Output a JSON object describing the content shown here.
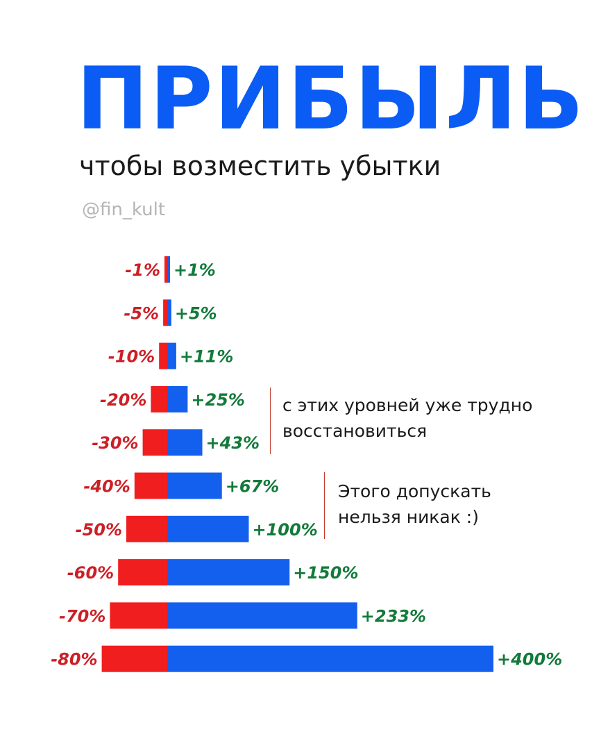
{
  "header": {
    "title": "ПРИБЫЛЬ",
    "subtitle": "чтобы возместить убытки",
    "handle": "@fin_kult"
  },
  "annotations": [
    {
      "line1": "с этих уровней уже трудно",
      "line2": "восстановиться"
    },
    {
      "line1": "Этого допускать",
      "line2": "нельзя никак :)"
    }
  ],
  "colors": {
    "title": "#0a5cf5",
    "loss_bar": "#f01e1e",
    "gain_bar": "#1460ee",
    "loss_label": "#cc1f26",
    "gain_label": "#127a3a"
  },
  "chart_data": {
    "type": "bar",
    "orientation": "horizontal-diverging",
    "categories": [
      "-1%",
      "-5%",
      "-10%",
      "-20%",
      "-30%",
      "-40%",
      "-50%",
      "-60%",
      "-70%",
      "-80%"
    ],
    "series": [
      {
        "values": [
          -1,
          -5,
          -10,
          -20,
          -30,
          -40,
          -50,
          -60,
          -70,
          -80
        ],
        "labels": [
          "-1%",
          "-5%",
          "-10%",
          "-20%",
          "-30%",
          "-40%",
          "-50%",
          "-60%",
          "-70%",
          "-80%"
        ]
      },
      {
        "values": [
          1,
          5,
          11,
          25,
          43,
          67,
          100,
          150,
          233,
          400
        ],
        "labels": [
          "+1%",
          "+5%",
          "+11%",
          "+25%",
          "+43%",
          "+67%",
          "+100%",
          "+150%",
          "+233%",
          "+400%"
        ]
      }
    ],
    "grid": false,
    "legend": false
  }
}
